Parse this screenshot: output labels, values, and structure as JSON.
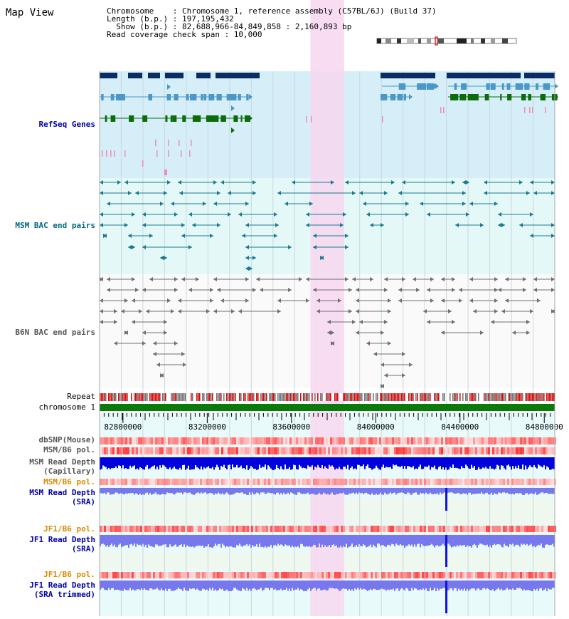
{
  "title": "Map View",
  "info": {
    "line1": "Chromosome    : Chromosome 1, reference assembly (C57BL/6J) (Build 37)",
    "line2": "Length (b.p.) : 197,195,432",
    "line3": "  Show (b.p.) : 82,688,966-84,849,858 : 2,160,893 bp",
    "line4": "Read coverage check span : 10,000"
  },
  "tracks": {
    "refseq": "RefSeq Genes",
    "msm_bac": "MSM BAC end pairs",
    "b6n_bac": "B6N BAC end pairs",
    "repeat": "Repeat",
    "chromosome": "chromosome 1",
    "dbsnp": "dbSNP(Mouse)",
    "msm_b6_pol": "MSM/B6 pol.",
    "msm_depth_cap_1": "MSM Read Depth",
    "msm_depth_cap_2": "(Capillary)",
    "msm_b6_pol_2": "MSM/B6 pol.",
    "msm_depth_sra_1": "MSM Read Depth",
    "msm_depth_sra_2": "(SRA)",
    "jf1_pol_1": "JF1/B6 pol.",
    "jf1_depth_sra_1": "JF1 Read Depth",
    "jf1_depth_sra_2": "(SRA)",
    "jf1_pol_2": "JF1/B6 pol.",
    "jf1_depth_trim_1": "JF1 Read Depth",
    "jf1_depth_trim_2": "(SRA trimmed)"
  },
  "axis": {
    "start": 82688966,
    "end": 84849858,
    "ticks": [
      "82800000",
      "83200000",
      "83600000",
      "84000000",
      "84400000",
      "84800000"
    ]
  },
  "highlight": {
    "start": 83690000,
    "end": 83850000
  },
  "colors": {
    "refseq_bg": "#d6eef8",
    "msm_bg": "#e4f8f8",
    "highlight": "#f7d7f0",
    "gene_dark": "#0b2d66",
    "gene_light": "#4a98c8",
    "gene_green": "#0c6c0c",
    "msm_line": "#1a7a90",
    "b6n_line": "#707070",
    "chrom": "#0a7a0a",
    "repeat": "#d01010",
    "pol": "#ee5555",
    "depth_dark": "#0000dd",
    "depth_light": "#7777ee",
    "label_blue": "#0000aa",
    "label_teal": "#006a80",
    "label_gray": "#555555",
    "label_orange": "#dd8800"
  }
}
